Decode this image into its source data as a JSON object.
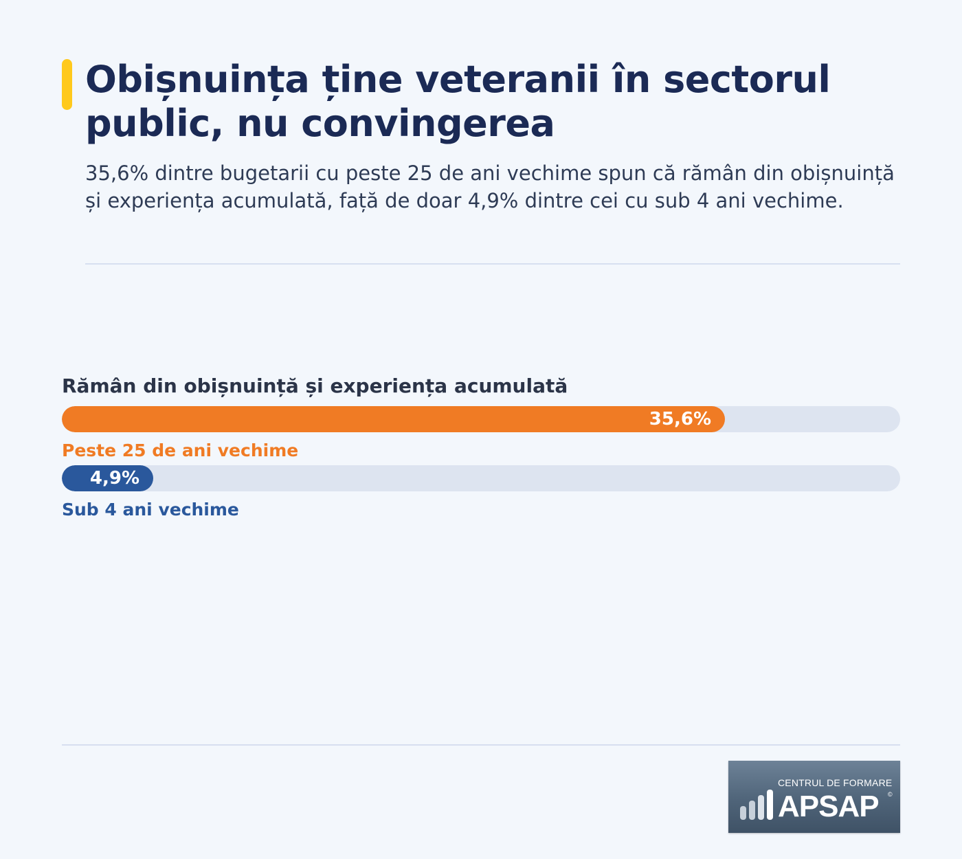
{
  "colors": {
    "accent_bar": "#ffc91c",
    "title": "#1b2a55",
    "series_high": "#f07b24",
    "series_low": "#2a589c",
    "track": "#dde4f0"
  },
  "header": {
    "title": "Obișnuința ține veteranii în sectorul public, nu convingerea",
    "subtitle": "35,6% dintre bugetarii cu peste 25 de ani vechime spun că rămân din obișnuință și experiența acumulată, față de doar 4,9% dintre cei cu sub 4 ani vechime."
  },
  "chart_data": {
    "type": "bar",
    "orientation": "horizontal",
    "title": "Rămân din obișnuință și experiența acumulată",
    "xlim": [
      0,
      45
    ],
    "unit": "%",
    "bars": [
      {
        "category": "Peste 25 de ani vechime",
        "value": 35.6,
        "label": "35,6%",
        "color": "#f07b24"
      },
      {
        "category": "Sub 4 ani vechime",
        "value": 4.9,
        "label": "4,9%",
        "color": "#2a589c"
      }
    ]
  },
  "logo": {
    "line1": "CENTRUL DE FORMARE",
    "line2": "APSAP",
    "mark": "©",
    "icon": "ascending-bars-icon"
  }
}
